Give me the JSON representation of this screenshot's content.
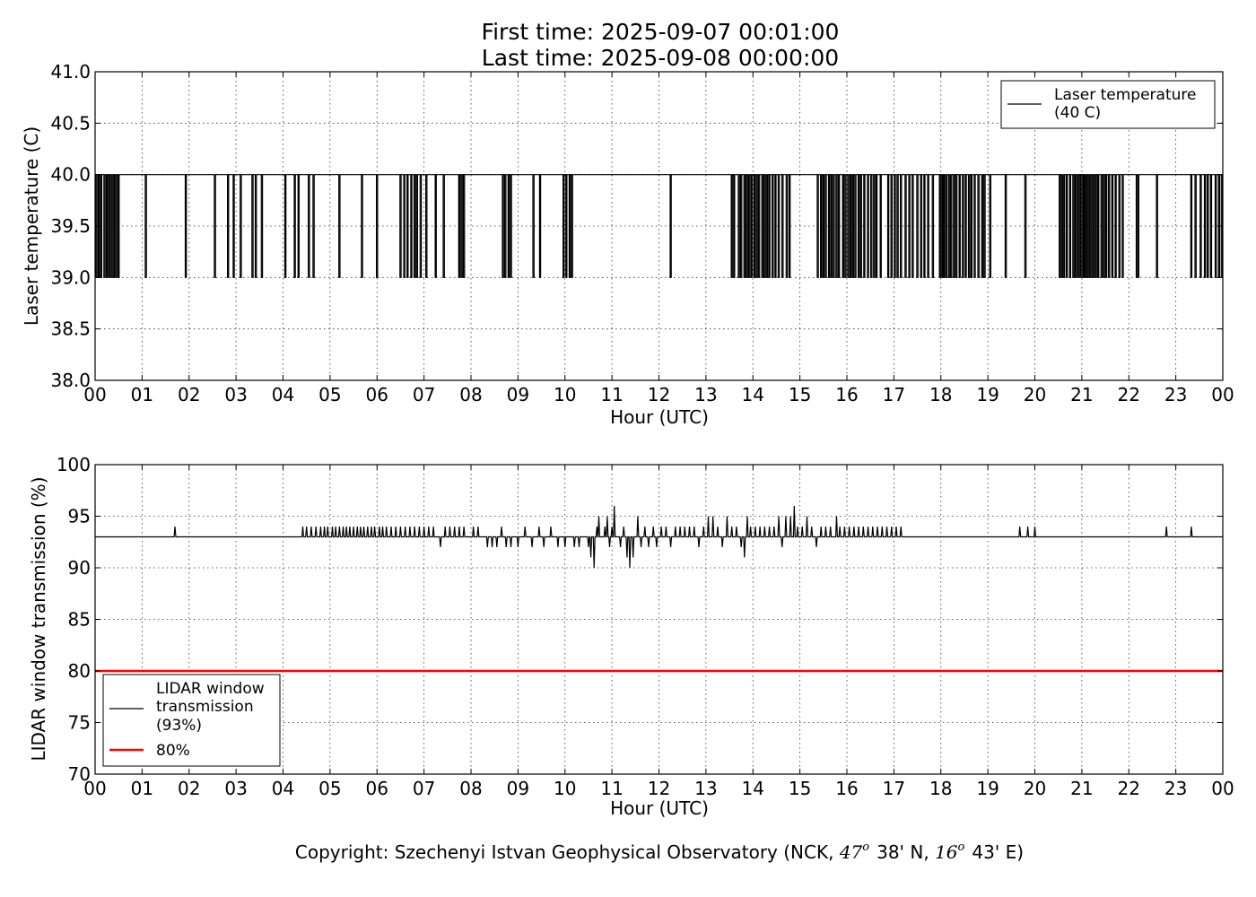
{
  "title": {
    "line1": "First time: 2025-09-07 00:01:00",
    "line2": "Last time: 2025-09-08 00:00:00"
  },
  "copyright": {
    "prefix": "Copyright: Szechenyi Istvan Geophysical Observatory (NCK, ",
    "lat_deg": "47",
    "lat_min": "38' N, ",
    "lon_deg": "16",
    "lon_min": "43' E)",
    "deg_symbol": "o"
  },
  "colors": {
    "series": "#000000",
    "threshold": "#ff0000"
  },
  "chart_data": [
    {
      "type": "line",
      "xlabel": "Hour (UTC)",
      "ylabel": "Laser temperature (C)",
      "xlim": [
        0,
        24
      ],
      "ylim": [
        38.0,
        41.0
      ],
      "x_ticks": [
        "00",
        "01",
        "02",
        "03",
        "04",
        "05",
        "06",
        "07",
        "08",
        "09",
        "10",
        "11",
        "12",
        "13",
        "14",
        "15",
        "16",
        "17",
        "18",
        "19",
        "20",
        "21",
        "22",
        "23",
        "00"
      ],
      "y_ticks": [
        "38.0",
        "38.5",
        "39.0",
        "39.5",
        "40.0",
        "40.5",
        "41.0"
      ],
      "grid": true,
      "legend_position": "top-right",
      "series": [
        {
          "name": "Laser temperature\n(40 C)",
          "legend_lines": [
            "Laser temperature",
            "(40 C)"
          ],
          "color": "#000000",
          "baseline": 40.0,
          "dips_to": 39.0,
          "dip_hours": [
            0.03,
            0.08,
            0.13,
            0.2,
            0.25,
            0.3,
            0.35,
            0.4,
            0.45,
            0.5,
            1.08,
            1.93,
            2.55,
            2.83,
            2.95,
            3.1,
            3.35,
            3.42,
            3.55,
            4.05,
            4.25,
            4.33,
            4.55,
            4.65,
            5.2,
            5.68,
            6.0,
            6.5,
            6.58,
            6.65,
            6.73,
            6.8,
            6.85,
            6.93,
            7.05,
            7.25,
            7.42,
            7.75,
            7.8,
            7.85,
            8.68,
            8.73,
            8.8,
            8.85,
            9.33,
            9.47,
            9.97,
            10.03,
            10.1,
            10.15,
            12.25,
            13.55,
            13.6,
            13.7,
            13.75,
            13.82,
            13.87,
            13.92,
            13.97,
            14.03,
            14.08,
            14.13,
            14.2,
            14.25,
            14.3,
            14.35,
            14.42,
            14.48,
            14.55,
            14.63,
            14.72,
            14.78,
            15.38,
            15.45,
            15.5,
            15.55,
            15.62,
            15.67,
            15.72,
            15.78,
            15.83,
            15.92,
            15.97,
            16.03,
            16.08,
            16.13,
            16.18,
            16.25,
            16.3,
            16.37,
            16.45,
            16.52,
            16.58,
            16.63,
            16.72,
            16.88,
            16.95,
            17.02,
            17.08,
            17.15,
            17.25,
            17.33,
            17.4,
            17.5,
            17.58,
            17.65,
            17.73,
            17.83,
            17.98,
            18.03,
            18.07,
            18.12,
            18.18,
            18.22,
            18.28,
            18.33,
            18.4,
            18.47,
            18.53,
            18.6,
            18.65,
            18.72,
            18.8,
            18.88,
            18.93,
            19.05,
            19.38,
            19.8,
            20.53,
            20.58,
            20.62,
            20.68,
            20.75,
            20.82,
            20.87,
            20.92,
            20.97,
            21.02,
            21.05,
            21.08,
            21.12,
            21.15,
            21.2,
            21.25,
            21.3,
            21.35,
            21.42,
            21.47,
            21.52,
            21.58,
            21.65,
            21.72,
            21.8,
            21.87,
            22.17,
            22.2,
            22.6,
            23.33,
            23.42,
            23.53,
            23.62,
            23.68,
            23.75,
            23.85,
            23.92,
            23.98
          ]
        }
      ]
    },
    {
      "type": "line",
      "xlabel": "Hour (UTC)",
      "ylabel": "LIDAR window transmission (%)",
      "xlim": [
        0,
        24
      ],
      "ylim": [
        70,
        100
      ],
      "x_ticks": [
        "00",
        "01",
        "02",
        "03",
        "04",
        "05",
        "06",
        "07",
        "08",
        "09",
        "10",
        "11",
        "12",
        "13",
        "14",
        "15",
        "16",
        "17",
        "18",
        "19",
        "20",
        "21",
        "22",
        "23",
        "00"
      ],
      "y_ticks": [
        "70",
        "75",
        "80",
        "85",
        "90",
        "95",
        "100"
      ],
      "grid": true,
      "legend_position": "bottom-left",
      "series": [
        {
          "name": "LIDAR window\ntransmission\n(93%)",
          "legend_lines": [
            "LIDAR window",
            "transmission",
            "(93%)"
          ],
          "color": "#000000",
          "baseline": 93,
          "events": [
            [
              1.7,
              94
            ],
            [
              4.42,
              94
            ],
            [
              4.5,
              94
            ],
            [
              4.6,
              94
            ],
            [
              4.7,
              94
            ],
            [
              4.8,
              94
            ],
            [
              4.88,
              94
            ],
            [
              4.95,
              94
            ],
            [
              5.05,
              94
            ],
            [
              5.12,
              94
            ],
            [
              5.2,
              94
            ],
            [
              5.28,
              94
            ],
            [
              5.35,
              94
            ],
            [
              5.42,
              94
            ],
            [
              5.5,
              94
            ],
            [
              5.58,
              94
            ],
            [
              5.65,
              94
            ],
            [
              5.72,
              94
            ],
            [
              5.8,
              94
            ],
            [
              5.88,
              94
            ],
            [
              5.95,
              94
            ],
            [
              6.05,
              94
            ],
            [
              6.12,
              94
            ],
            [
              6.2,
              94
            ],
            [
              6.3,
              94
            ],
            [
              6.4,
              94
            ],
            [
              6.5,
              94
            ],
            [
              6.6,
              94
            ],
            [
              6.7,
              94
            ],
            [
              6.8,
              94
            ],
            [
              6.9,
              94
            ],
            [
              7.0,
              94
            ],
            [
              7.1,
              94
            ],
            [
              7.2,
              94
            ],
            [
              7.35,
              92
            ],
            [
              7.45,
              94
            ],
            [
              7.55,
              94
            ],
            [
              7.65,
              94
            ],
            [
              7.75,
              94
            ],
            [
              7.85,
              94
            ],
            [
              8.05,
              94
            ],
            [
              8.15,
              94
            ],
            [
              8.35,
              92
            ],
            [
              8.45,
              92
            ],
            [
              8.55,
              92
            ],
            [
              8.65,
              94
            ],
            [
              8.75,
              92
            ],
            [
              8.85,
              92
            ],
            [
              9.0,
              92
            ],
            [
              9.15,
              94
            ],
            [
              9.3,
              92
            ],
            [
              9.45,
              94
            ],
            [
              9.55,
              92
            ],
            [
              9.7,
              94
            ],
            [
              9.85,
              92
            ],
            [
              10.0,
              92
            ],
            [
              10.2,
              92
            ],
            [
              10.3,
              92
            ],
            [
              10.5,
              92
            ],
            [
              10.55,
              91
            ],
            [
              10.62,
              90
            ],
            [
              10.68,
              94
            ],
            [
              10.72,
              95
            ],
            [
              10.78,
              93
            ],
            [
              10.85,
              94
            ],
            [
              10.9,
              95
            ],
            [
              10.95,
              92
            ],
            [
              11.0,
              94
            ],
            [
              11.05,
              96
            ],
            [
              11.12,
              93
            ],
            [
              11.18,
              92
            ],
            [
              11.25,
              94
            ],
            [
              11.32,
              91
            ],
            [
              11.38,
              90
            ],
            [
              11.45,
              91
            ],
            [
              11.55,
              95
            ],
            [
              11.62,
              92
            ],
            [
              11.7,
              94
            ],
            [
              11.78,
              92
            ],
            [
              11.88,
              94
            ],
            [
              11.95,
              92
            ],
            [
              12.05,
              94
            ],
            [
              12.15,
              94
            ],
            [
              12.25,
              92
            ],
            [
              12.35,
              94
            ],
            [
              12.45,
              94
            ],
            [
              12.55,
              94
            ],
            [
              12.65,
              94
            ],
            [
              12.75,
              94
            ],
            [
              12.85,
              92
            ],
            [
              12.95,
              94
            ],
            [
              13.05,
              95
            ],
            [
              13.15,
              95
            ],
            [
              13.25,
              94
            ],
            [
              13.35,
              92
            ],
            [
              13.45,
              95
            ],
            [
              13.55,
              94
            ],
            [
              13.65,
              94
            ],
            [
              13.75,
              92
            ],
            [
              13.82,
              91
            ],
            [
              13.88,
              95
            ],
            [
              13.95,
              94
            ],
            [
              14.05,
              94
            ],
            [
              14.15,
              94
            ],
            [
              14.25,
              94
            ],
            [
              14.35,
              94
            ],
            [
              14.45,
              94
            ],
            [
              14.55,
              95
            ],
            [
              14.62,
              92
            ],
            [
              14.7,
              95
            ],
            [
              14.8,
              95
            ],
            [
              14.88,
              96
            ],
            [
              14.95,
              94
            ],
            [
              15.05,
              94
            ],
            [
              15.15,
              95
            ],
            [
              15.25,
              94
            ],
            [
              15.35,
              92
            ],
            [
              15.45,
              94
            ],
            [
              15.55,
              94
            ],
            [
              15.65,
              94
            ],
            [
              15.78,
              95
            ],
            [
              15.85,
              94
            ],
            [
              15.95,
              94
            ],
            [
              16.05,
              94
            ],
            [
              16.15,
              94
            ],
            [
              16.25,
              94
            ],
            [
              16.35,
              94
            ],
            [
              16.45,
              94
            ],
            [
              16.55,
              94
            ],
            [
              16.65,
              94
            ],
            [
              16.75,
              94
            ],
            [
              16.85,
              94
            ],
            [
              16.95,
              94
            ],
            [
              17.05,
              94
            ],
            [
              17.15,
              94
            ],
            [
              19.68,
              94
            ],
            [
              19.85,
              94
            ],
            [
              20.0,
              94
            ],
            [
              22.8,
              94
            ],
            [
              23.33,
              94
            ]
          ]
        },
        {
          "name": "80%",
          "legend_lines": [
            "80%"
          ],
          "color": "#ff0000",
          "constant": 80
        }
      ]
    }
  ]
}
